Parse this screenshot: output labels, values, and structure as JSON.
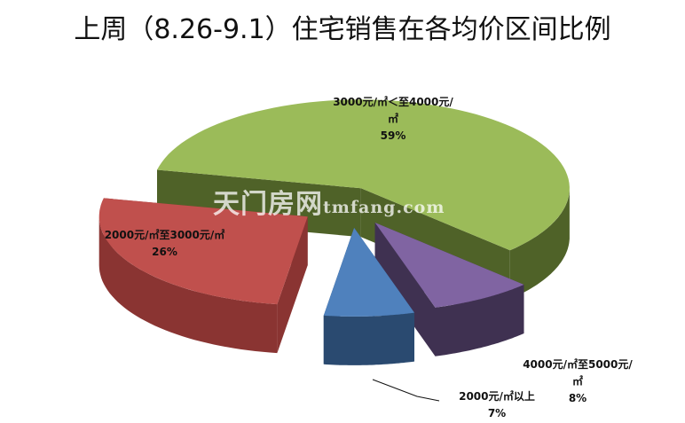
{
  "chart_data": {
    "type": "pie",
    "title": "上周（8.26-9.1）住宅销售在各均价区间比例",
    "slices": [
      {
        "label": "3000元/㎡＜至4000元/㎡",
        "value": 59,
        "value_label": "59%",
        "color": "#9bbb59",
        "side_color": "#4f6228"
      },
      {
        "label": "4000元/㎡至5000元/㎡",
        "value": 8,
        "value_label": "8%",
        "color": "#8064a2",
        "side_color": "#3f3151"
      },
      {
        "label": "2000元/㎡以上",
        "value": 7,
        "value_label": "7%",
        "color": "#4f81bd",
        "side_color": "#2a4a70"
      },
      {
        "label": "2000元/㎡至3000元/㎡",
        "value": 26,
        "value_label": "26%",
        "color": "#c0504d",
        "side_color": "#8a3432"
      }
    ],
    "style": "3d-exploded",
    "legend": "none"
  },
  "watermark": {
    "text": "天门房网",
    "domain": "tmfang.com"
  }
}
